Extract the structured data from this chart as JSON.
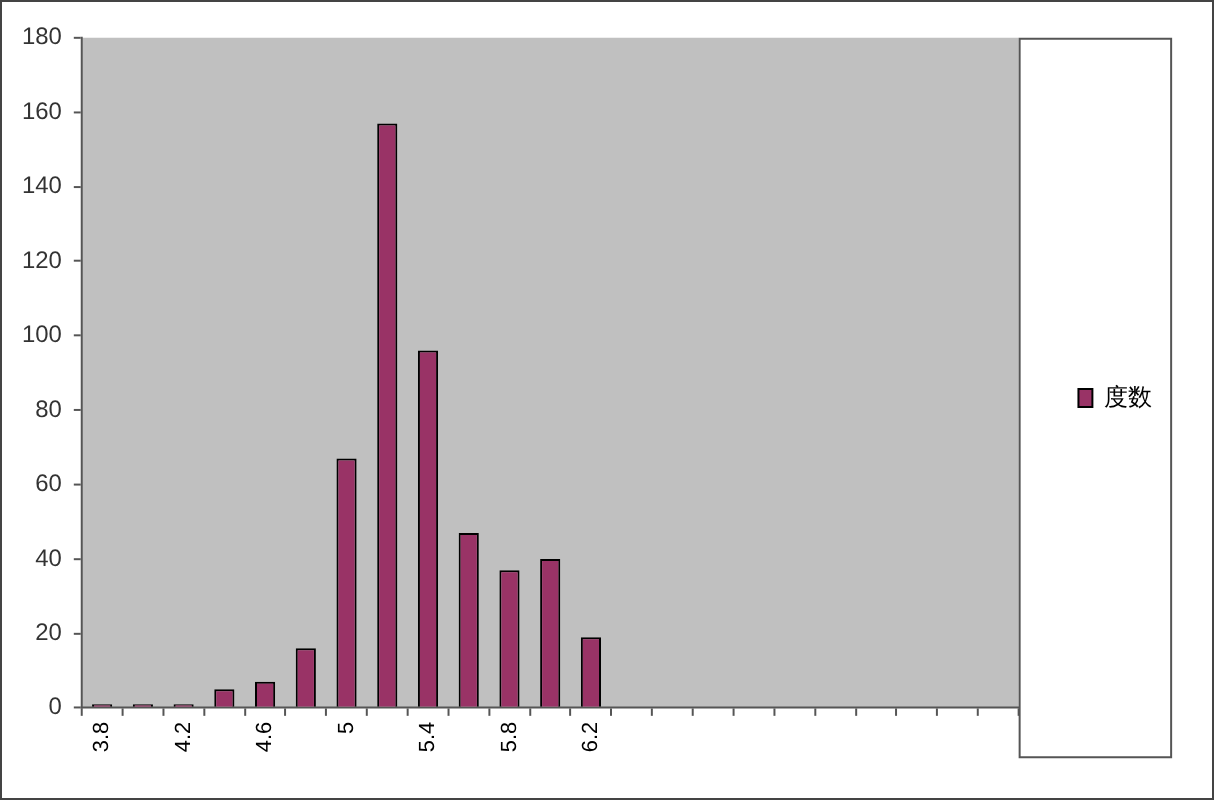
{
  "chart_data": {
    "type": "bar",
    "categories": [
      "3.8",
      null,
      "4.2",
      null,
      "4.6",
      null,
      "5",
      null,
      "5.4",
      null,
      "5.8",
      null,
      "6.2",
      null,
      null,
      null,
      null,
      null,
      null,
      null,
      null,
      null,
      null
    ],
    "series": [
      {
        "name": "度数",
        "color": "#993366",
        "values": [
          1,
          1,
          1,
          5,
          7,
          16,
          67,
          157,
          96,
          47,
          37,
          40,
          19,
          null,
          null,
          null,
          null,
          null,
          null,
          null,
          null,
          null,
          null
        ]
      }
    ],
    "ylim": [
      0,
      180
    ],
    "yticks": [
      0,
      20,
      40,
      60,
      80,
      100,
      120,
      140,
      160,
      180
    ],
    "grid": false,
    "legend": "right"
  }
}
